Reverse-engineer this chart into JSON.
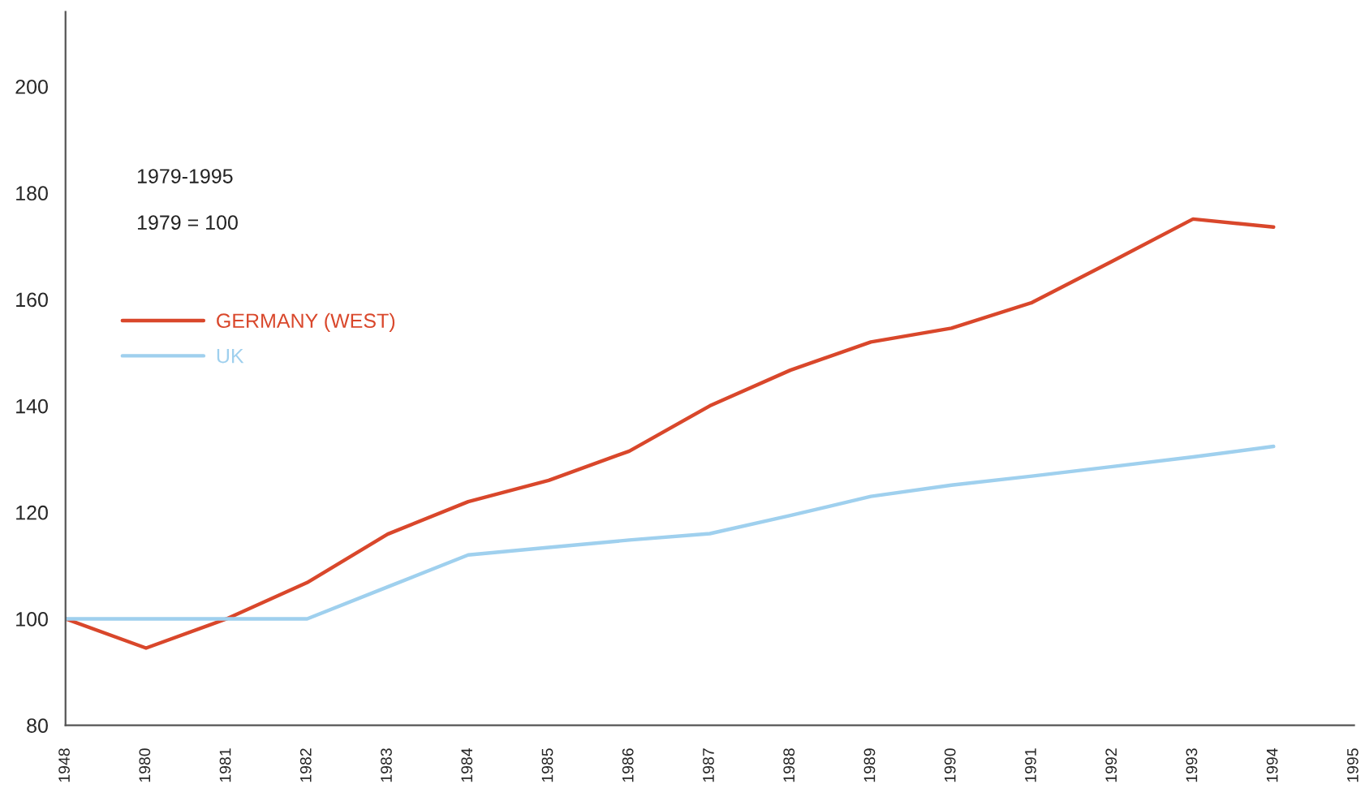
{
  "chart_data": {
    "type": "line",
    "annotations": [
      "1979-1995",
      "1979 = 100"
    ],
    "categories": [
      "1948",
      "1980",
      "1981",
      "1982",
      "1983",
      "1984",
      "1985",
      "1986",
      "1987",
      "1988",
      "1989",
      "1990",
      "1991",
      "1992",
      "1993",
      "1994",
      "1995"
    ],
    "series": [
      {
        "name": "GERMANY (WEST)",
        "color": "#d9472b",
        "values": [
          100,
          94.5,
          100,
          106.8,
          115.9,
          122,
          126,
          131.5,
          140,
          146.7,
          152,
          154.6,
          159.4,
          167.2,
          175.1,
          173.6,
          null
        ]
      },
      {
        "name": "UK",
        "color": "#9fd0ee",
        "values": [
          100,
          100,
          100,
          100,
          106,
          112,
          113.4,
          114.8,
          116,
          119.4,
          123,
          125.1,
          126.8,
          128.6,
          130.4,
          132.4,
          null
        ]
      }
    ],
    "ylim": [
      80,
      214
    ],
    "yticks": [
      80,
      100,
      120,
      140,
      160,
      180,
      200
    ],
    "grid": false,
    "legend": "left",
    "marker": "none",
    "line_style": "solid"
  }
}
